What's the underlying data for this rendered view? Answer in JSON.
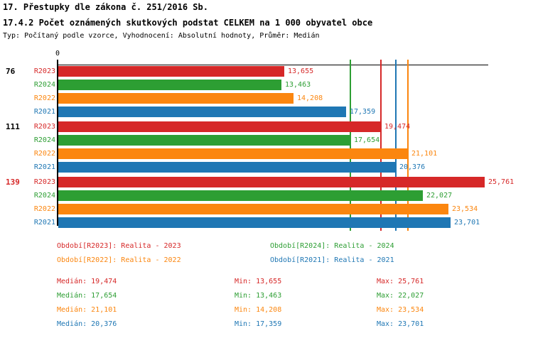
{
  "header": {
    "title": "17. Přestupky dle zákona č. 251/2016 Sb.",
    "subtitle": "17.4.2 Počet oznámených skutkových podstat CELKEM na 1 000 obyvatel obce",
    "meta": "Typ: Počítaný podle vzorce, Vyhodnocení: Absolutní hodnoty, Průměr: Medián"
  },
  "chart_data": {
    "type": "bar",
    "orientation": "horizontal",
    "title": "17.4.2 Počet oznámených skutkových podstat CELKEM na 1 000 obyvatel obce",
    "x_axis": {
      "origin_label": "0",
      "max": 26
    },
    "grid": false,
    "legend_position": "bottom",
    "median_lines": true,
    "categories": [
      "76",
      "111",
      "139"
    ],
    "category_label_colors": [
      "#000000",
      "#000000",
      "#d62828"
    ],
    "series": [
      {
        "name": "R2023",
        "color": "#d62828",
        "values": [
          13.655,
          19.474,
          25.761
        ],
        "value_labels": [
          "13,655",
          "19,474",
          "25,761"
        ],
        "legend_label": "Období[R2023]: Realita - 2023",
        "median": 19.474,
        "median_text": "Medián: 19,474",
        "min_text": "Min: 13,655",
        "max_text": "Max: 25,761"
      },
      {
        "name": "R2024",
        "color": "#2d9e33",
        "values": [
          13.463,
          17.654,
          22.027
        ],
        "value_labels": [
          "13,463",
          "17,654",
          "22,027"
        ],
        "legend_label": "Období[R2024]: Realita - 2024",
        "median": 17.654,
        "median_text": "Medián: 17,654",
        "min_text": "Min: 13,463",
        "max_text": "Max: 22,027"
      },
      {
        "name": "R2022",
        "color": "#fb860f",
        "values": [
          14.208,
          21.101,
          23.534
        ],
        "value_labels": [
          "14,208",
          "21,101",
          "23,534"
        ],
        "legend_label": "Období[R2022]: Realita - 2022",
        "median": 21.101,
        "median_text": "Medián: 21,101",
        "min_text": "Min: 14,208",
        "max_text": "Max: 23,534"
      },
      {
        "name": "R2021",
        "color": "#1f77b4",
        "values": [
          17.359,
          20.376,
          23.701
        ],
        "value_labels": [
          "17,359",
          "20,376",
          "23,701"
        ],
        "legend_label": "Období[R2021]: Realita - 2021",
        "median": 20.376,
        "median_text": "Medián: 20,376",
        "min_text": "Min: 17,359",
        "max_text": "Max: 23,701"
      }
    ]
  }
}
